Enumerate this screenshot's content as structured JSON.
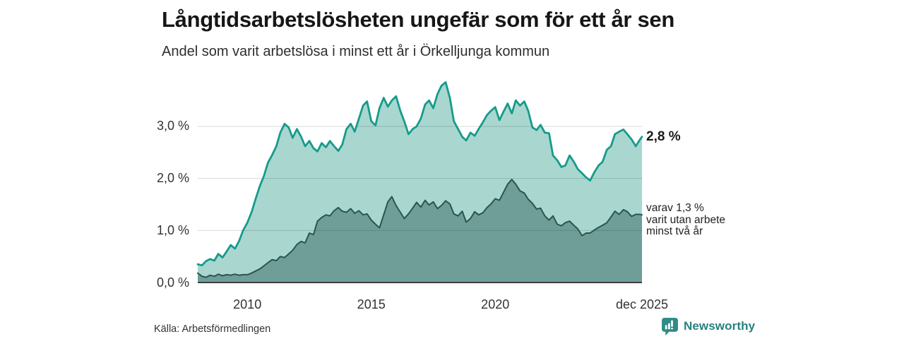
{
  "chart_data": {
    "type": "area",
    "title": "Långtidsarbetslösheten ungefär som för ett år sen",
    "subtitle": "Andel som varit arbetslösa i minst ett år i Örkelljunga kommun",
    "grid": "horizontal",
    "ylim": [
      0,
      3.9
    ],
    "xlim": [
      2008.0,
      2025.92
    ],
    "ytick_labels": [
      "0,0 %",
      "1,0 %",
      "2,0 %",
      "3,0 %"
    ],
    "ytick_values": [
      0,
      1,
      2,
      3
    ],
    "xtick_labels": [
      "2010",
      "2015",
      "2020",
      "dec 2025"
    ],
    "xtick_years": [
      2010,
      2015,
      2020,
      2025.92
    ],
    "x_unit": "decimal_year",
    "x_years": [
      2008.0,
      2008.17,
      2008.33,
      2008.5,
      2008.67,
      2008.83,
      2009.0,
      2009.17,
      2009.33,
      2009.5,
      2009.67,
      2009.83,
      2010.0,
      2010.17,
      2010.33,
      2010.5,
      2010.67,
      2010.83,
      2011.0,
      2011.17,
      2011.33,
      2011.5,
      2011.67,
      2011.83,
      2012.0,
      2012.17,
      2012.33,
      2012.5,
      2012.67,
      2012.83,
      2013.0,
      2013.17,
      2013.33,
      2013.5,
      2013.67,
      2013.83,
      2014.0,
      2014.17,
      2014.33,
      2014.5,
      2014.67,
      2014.83,
      2015.0,
      2015.17,
      2015.33,
      2015.5,
      2015.67,
      2015.83,
      2016.0,
      2016.17,
      2016.33,
      2016.5,
      2016.67,
      2016.83,
      2017.0,
      2017.17,
      2017.33,
      2017.5,
      2017.67,
      2017.83,
      2018.0,
      2018.17,
      2018.33,
      2018.5,
      2018.67,
      2018.83,
      2019.0,
      2019.17,
      2019.33,
      2019.5,
      2019.67,
      2019.83,
      2020.0,
      2020.17,
      2020.33,
      2020.5,
      2020.67,
      2020.83,
      2021.0,
      2021.17,
      2021.33,
      2021.5,
      2021.67,
      2021.83,
      2022.0,
      2022.17,
      2022.33,
      2022.5,
      2022.67,
      2022.83,
      2023.0,
      2023.17,
      2023.33,
      2023.5,
      2023.67,
      2023.83,
      2024.0,
      2024.17,
      2024.33,
      2024.5,
      2024.67,
      2024.83,
      2025.0,
      2025.17,
      2025.33,
      2025.5,
      2025.67,
      2025.83,
      2025.92
    ],
    "series": [
      {
        "name": "Andel arbetslösa minst ett år",
        "line_color": "#169b8b",
        "fill_color": "#a9d7d0",
        "end_value_label": "2,8 %",
        "values": [
          0.35,
          0.33,
          0.41,
          0.45,
          0.42,
          0.55,
          0.48,
          0.6,
          0.72,
          0.65,
          0.8,
          1.0,
          1.15,
          1.35,
          1.6,
          1.85,
          2.05,
          2.3,
          2.45,
          2.62,
          2.88,
          3.05,
          2.98,
          2.78,
          2.95,
          2.8,
          2.62,
          2.72,
          2.58,
          2.52,
          2.68,
          2.6,
          2.72,
          2.62,
          2.53,
          2.65,
          2.95,
          3.05,
          2.9,
          3.15,
          3.4,
          3.48,
          3.1,
          3.02,
          3.35,
          3.55,
          3.38,
          3.5,
          3.58,
          3.3,
          3.1,
          2.85,
          2.95,
          3.0,
          3.15,
          3.42,
          3.5,
          3.35,
          3.62,
          3.78,
          3.85,
          3.55,
          3.1,
          2.95,
          2.8,
          2.73,
          2.88,
          2.82,
          2.95,
          3.08,
          3.22,
          3.3,
          3.37,
          3.12,
          3.28,
          3.44,
          3.25,
          3.5,
          3.4,
          3.48,
          3.3,
          2.98,
          2.93,
          3.03,
          2.88,
          2.87,
          2.44,
          2.35,
          2.22,
          2.25,
          2.44,
          2.32,
          2.18,
          2.1,
          2.02,
          1.96,
          2.12,
          2.25,
          2.32,
          2.55,
          2.62,
          2.85,
          2.9,
          2.94,
          2.85,
          2.75,
          2.62,
          2.74,
          2.8
        ]
      },
      {
        "name": "Varav utan arbete minst två år",
        "line_color": "#28564f",
        "fill_color": "#6f9e99",
        "end_value_label": "varav 1,3 %",
        "values": [
          0.18,
          0.12,
          0.1,
          0.14,
          0.12,
          0.16,
          0.13,
          0.15,
          0.14,
          0.16,
          0.14,
          0.15,
          0.15,
          0.18,
          0.22,
          0.26,
          0.32,
          0.38,
          0.44,
          0.42,
          0.5,
          0.48,
          0.55,
          0.62,
          0.73,
          0.79,
          0.76,
          0.95,
          0.92,
          1.18,
          1.25,
          1.3,
          1.28,
          1.38,
          1.44,
          1.37,
          1.35,
          1.42,
          1.33,
          1.38,
          1.3,
          1.32,
          1.2,
          1.12,
          1.05,
          1.3,
          1.55,
          1.65,
          1.48,
          1.35,
          1.23,
          1.32,
          1.43,
          1.54,
          1.45,
          1.58,
          1.49,
          1.55,
          1.42,
          1.48,
          1.57,
          1.51,
          1.32,
          1.28,
          1.37,
          1.16,
          1.23,
          1.36,
          1.3,
          1.34,
          1.44,
          1.51,
          1.61,
          1.58,
          1.73,
          1.89,
          1.98,
          1.89,
          1.76,
          1.72,
          1.6,
          1.52,
          1.41,
          1.43,
          1.28,
          1.2,
          1.28,
          1.12,
          1.09,
          1.15,
          1.18,
          1.1,
          1.03,
          0.9,
          0.95,
          0.95,
          1.01,
          1.06,
          1.1,
          1.15,
          1.26,
          1.37,
          1.31,
          1.4,
          1.36,
          1.27,
          1.31,
          1.31,
          1.3
        ]
      }
    ],
    "end_annotations": {
      "total": "2,8 %",
      "subset_lines": [
        "varav 1,3 %",
        "varit utan arbete",
        "minst två år"
      ]
    }
  },
  "footer": {
    "source": "Källa: Arbetsförmedlingen",
    "brand": "Newsworthy"
  },
  "icons": {
    "brand_icon": "newsworthy-speech-bubble-bar-chart",
    "brand_color": "#2e8c85"
  }
}
